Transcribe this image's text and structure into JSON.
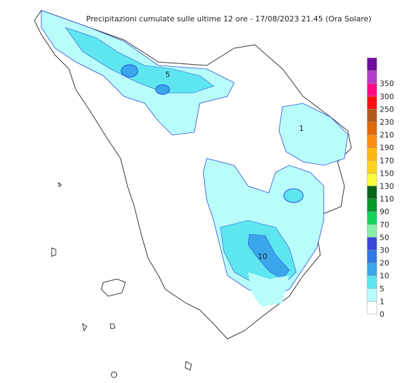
{
  "title": "Precipitazioni cumulate sulle ultime 12 ore - 17/08/2023 21.45 (Ora Solare)",
  "legend": {
    "labels": [
      0,
      1,
      5,
      10,
      20,
      30,
      50,
      70,
      90,
      110,
      130,
      150,
      170,
      190,
      210,
      230,
      250,
      300,
      350
    ],
    "colors": [
      "#ffffff",
      "#b8fcfc",
      "#5ee6f0",
      "#3aa6ec",
      "#2f7ae8",
      "#3848dc",
      "#86f0a8",
      "#16d25a",
      "#07982a",
      "#05641a",
      "#fdfd3c",
      "#ffd21c",
      "#ffb812",
      "#ff8c10",
      "#e26a08",
      "#b45a18",
      "#ff1010",
      "#ff0a82",
      "#b43ccc",
      "#6e0a9a"
    ]
  },
  "contour_labels": [
    "5",
    "1",
    "10"
  ]
}
